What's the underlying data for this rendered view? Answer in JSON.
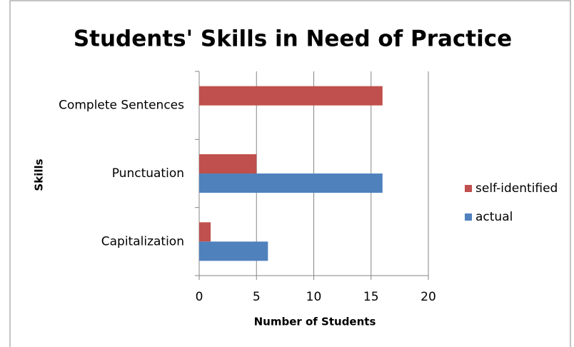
{
  "chart_data": {
    "type": "bar",
    "orientation": "horizontal",
    "title": "Students' Skills in Need of Practice",
    "x_label": "Number of Students",
    "y_label": "Skills",
    "categories": [
      "Complete Sentences",
      "Punctuation",
      "Capitalization"
    ],
    "series": [
      {
        "name": "self-identified",
        "color": "#c0504d",
        "values": [
          16,
          5,
          1
        ]
      },
      {
        "name": "actual",
        "color": "#4f81bd",
        "values": [
          0,
          16,
          6
        ]
      }
    ],
    "xlim": [
      0,
      20
    ],
    "xticks": [
      0,
      5,
      10,
      15,
      20
    ],
    "grid": true,
    "legend": "right"
  }
}
